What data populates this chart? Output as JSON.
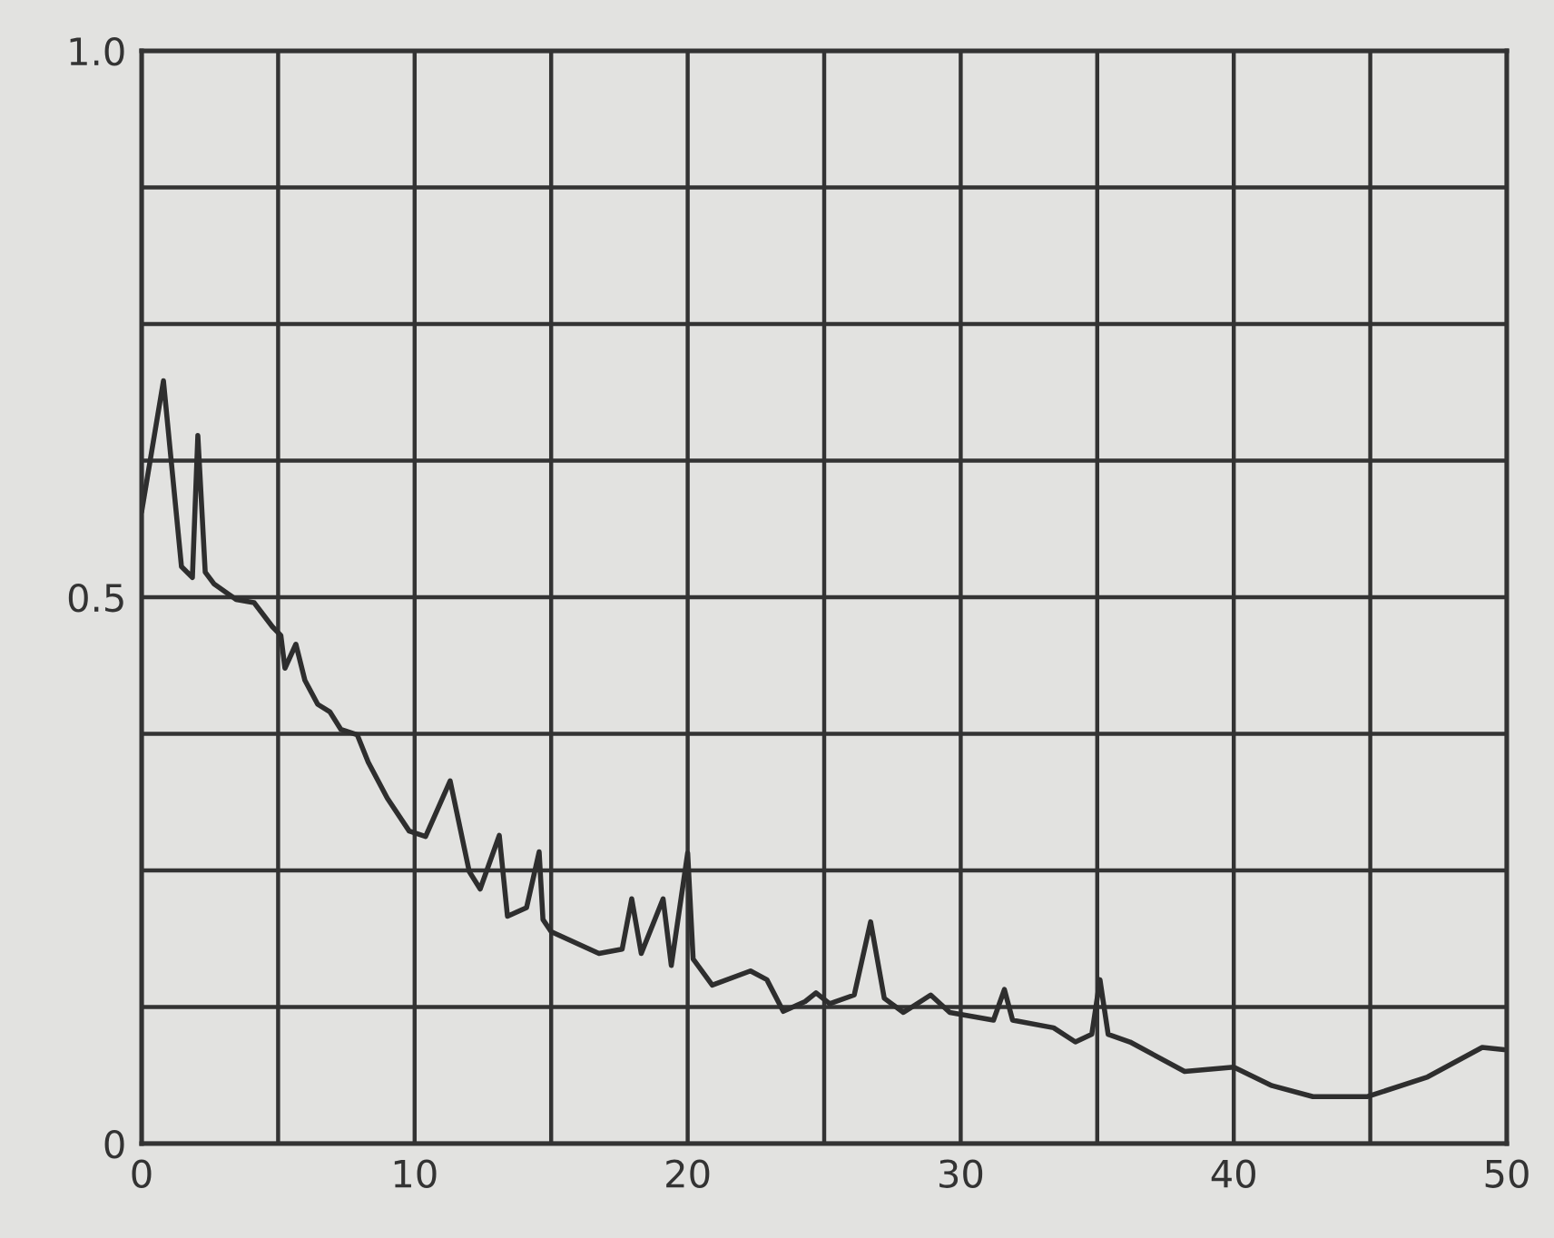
{
  "chart_data": {
    "type": "line",
    "x": [
      0,
      0.8,
      1.46,
      1.86,
      2.06,
      2.33,
      2.66,
      3.46,
      4.12,
      4.79,
      5.1,
      5.25,
      5.65,
      5.98,
      6.45,
      6.9,
      7.3,
      7.9,
      8.3,
      9,
      9.8,
      10.4,
      11.3,
      12,
      12.4,
      13.1,
      13.4,
      14.1,
      14.56,
      14.7,
      15,
      16.75,
      17.6,
      17.95,
      18.3,
      19.1,
      19.4,
      20.0,
      20.2,
      20.9,
      22.3,
      22.9,
      23.5,
      24.3,
      24.7,
      25.2,
      26.1,
      26.7,
      27.2,
      27.9,
      28.9,
      29.6,
      31.2,
      31.6,
      31.9,
      33.4,
      34.2,
      34.8,
      35.1,
      35.4,
      36.2,
      38.2,
      40.0,
      41.4,
      42.9,
      44.9,
      47.1,
      49.1,
      49.9
    ],
    "series": [
      {
        "color": "#2e2e2e",
        "values": [
          0.578,
          0.698,
          0.528,
          0.518,
          0.648,
          0.523,
          0.512,
          0.498,
          0.495,
          0.473,
          0.465,
          0.435,
          0.457,
          0.424,
          0.402,
          0.395,
          0.379,
          0.374,
          0.349,
          0.316,
          0.286,
          0.281,
          0.332,
          0.249,
          0.233,
          0.282,
          0.208,
          0.216,
          0.267,
          0.205,
          0.194,
          0.174,
          0.178,
          0.224,
          0.174,
          0.224,
          0.163,
          0.266,
          0.169,
          0.145,
          0.158,
          0.15,
          0.121,
          0.13,
          0.138,
          0.128,
          0.136,
          0.203,
          0.133,
          0.12,
          0.136,
          0.12,
          0.113,
          0.141,
          0.113,
          0.106,
          0.093,
          0.1,
          0.15,
          0.1,
          0.093,
          0.066,
          0.07,
          0.053,
          0.043,
          0.043,
          0.061,
          0.088,
          0.086
        ]
      }
    ],
    "xlim": [
      0,
      50
    ],
    "ylim": [
      0,
      1.0
    ],
    "xticks": [
      0,
      {
        "value": 5,
        "label": null
      },
      10,
      {
        "value": 15,
        "label": null
      },
      20,
      {
        "value": 25,
        "label": null
      },
      30,
      {
        "value": 35,
        "label": null
      },
      40,
      {
        "value": 45,
        "label": null
      },
      50
    ],
    "yticks": [
      0,
      {
        "value": 0.125,
        "label": null
      },
      {
        "value": 0.25,
        "label": null
      },
      {
        "value": 0.375,
        "label": null
      },
      0.5,
      {
        "value": 0.625,
        "label": null
      },
      {
        "value": 0.75,
        "label": null
      },
      {
        "value": 0.875,
        "label": null
      },
      {
        "value": 1.0,
        "label": "1.0"
      }
    ],
    "grid": true,
    "marker": "none",
    "line_style": "solid",
    "legend": false
  }
}
